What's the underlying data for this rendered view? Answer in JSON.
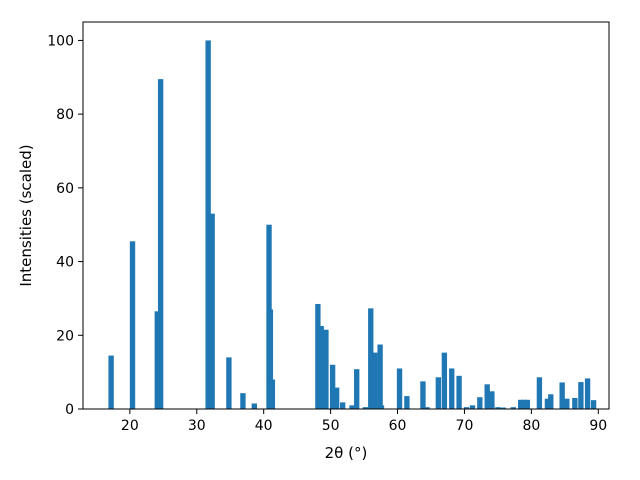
{
  "chart_data": {
    "type": "bar",
    "xlabel": "2θ (°)",
    "ylabel": "Intensities (scaled)",
    "xlim": [
      13,
      91.6
    ],
    "ylim": [
      0,
      105
    ],
    "bar_color": "#1f77b4",
    "bar_width": 0.8,
    "xticks": [
      20,
      30,
      40,
      50,
      60,
      70,
      80,
      90
    ],
    "yticks": [
      0,
      20,
      40,
      60,
      80,
      100
    ],
    "grid": false,
    "x": [
      17.2,
      20.4,
      24.1,
      24.6,
      31.7,
      32.3,
      34.8,
      36.9,
      38.6,
      40.8,
      41.0,
      41.3,
      48.1,
      48.6,
      49.3,
      50.3,
      50.9,
      51.8,
      53.2,
      53.9,
      55.2,
      56.0,
      56.6,
      57.4,
      57.6,
      60.3,
      61.4,
      63.8,
      64.4,
      66.1,
      67.0,
      68.1,
      69.2,
      70.3,
      71.2,
      72.3,
      73.4,
      74.1,
      75.0,
      75.8,
      77.3,
      78.4,
      78.9,
      79.4,
      81.2,
      82.4,
      82.9,
      84.6,
      85.3,
      86.5,
      87.4,
      88.4,
      89.3
    ],
    "y": [
      14.5,
      45.5,
      26.5,
      89.5,
      100.0,
      53.0,
      14.0,
      4.3,
      1.5,
      50.0,
      27.0,
      8.0,
      28.5,
      22.5,
      21.5,
      12.0,
      5.8,
      1.8,
      1.0,
      10.8,
      0.5,
      27.3,
      15.3,
      17.5,
      1.0,
      11.0,
      3.5,
      7.5,
      0.5,
      8.6,
      15.3,
      11.0,
      9.0,
      0.5,
      1.0,
      3.2,
      6.7,
      4.8,
      0.5,
      0.4,
      0.5,
      2.5,
      2.5,
      2.5,
      8.6,
      2.8,
      4.0,
      7.2,
      2.8,
      3.0,
      7.3,
      8.3,
      2.4
    ]
  }
}
